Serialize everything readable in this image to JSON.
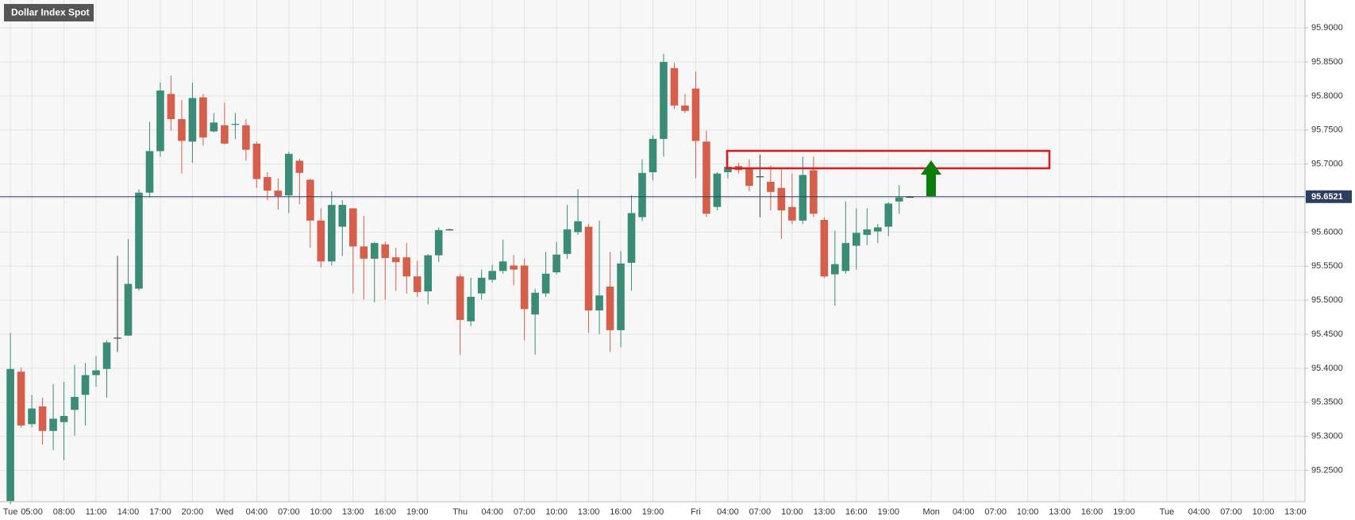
{
  "chart_data": {
    "type": "candlestick",
    "title": "Dollar Index Spot",
    "categories": [
      "Tue",
      null,
      "05:00",
      null,
      null,
      "08:00",
      null,
      null,
      "11:00",
      null,
      null,
      "14:00",
      null,
      null,
      "17:00",
      null,
      null,
      "20:00",
      null,
      null,
      "Wed",
      null,
      null,
      "04:00",
      null,
      null,
      "07:00",
      null,
      null,
      "10:00",
      null,
      null,
      "13:00",
      null,
      null,
      "16:00",
      null,
      null,
      "19:00",
      null,
      null,
      null,
      "Thu",
      null,
      null,
      "04:00",
      null,
      null,
      "07:00",
      null,
      null,
      "10:00",
      null,
      null,
      "13:00",
      null,
      null,
      "16:00",
      null,
      null,
      "19:00",
      null,
      null,
      null,
      "Fri",
      null,
      null,
      "04:00",
      null,
      null,
      "07:00",
      null,
      null,
      "10:00",
      null,
      null,
      "13:00",
      null,
      null,
      "16:00",
      null,
      null,
      "19:00",
      null,
      null,
      null,
      "Mon",
      null,
      null,
      "04:00",
      null,
      null,
      "07:00",
      null,
      null,
      "10:00",
      null,
      null,
      "13:00",
      null,
      null,
      "16:00",
      null,
      null,
      "19:00",
      null,
      null,
      null,
      "Tue",
      null,
      null,
      "04:00",
      null,
      null,
      "07:00",
      null,
      null,
      "10:00",
      null,
      null,
      "13:00"
    ],
    "open": [
      95.205,
      95.395,
      95.318,
      95.344,
      95.308,
      95.321,
      95.339,
      95.361,
      95.39,
      95.399,
      95.445,
      95.448,
      95.517,
      95.658,
      95.719,
      95.803,
      95.766,
      95.733,
      95.798,
      95.748,
      95.757,
      95.758,
      95.757,
      95.73,
      95.681,
      95.661,
      95.654,
      95.705,
      95.677,
      95.617,
      95.557,
      95.608,
      95.635,
      95.579,
      95.561,
      95.582,
      95.563,
      95.563,
      95.535,
      95.513,
      95.566,
      95.604,
      95.535,
      95.469,
      95.51,
      95.53,
      95.543,
      95.551,
      95.551,
      95.479,
      95.51,
      95.541,
      95.568,
      95.6,
      95.608,
      95.485,
      95.52,
      95.456,
      95.555,
      95.622,
      95.688,
      95.737,
      95.841,
      95.786,
      95.811,
      95.733,
      95.637,
      95.688,
      95.697,
      95.695,
      95.682,
      95.674,
      95.665,
      95.637,
      95.617,
      95.691,
      95.618,
      95.538,
      95.543,
      95.58,
      95.596,
      95.601,
      95.608,
      95.645,
      95.652,
      null,
      null,
      null,
      null,
      null,
      null,
      null,
      null,
      null,
      null,
      null,
      null,
      null,
      null,
      null,
      null,
      null,
      null,
      null,
      null,
      null,
      null,
      null,
      null,
      null,
      null,
      null,
      null,
      null,
      null,
      null,
      null,
      null,
      null,
      null,
      null
    ],
    "high": [
      95.452,
      95.401,
      95.361,
      95.357,
      95.377,
      95.38,
      95.405,
      95.408,
      95.418,
      95.441,
      95.565,
      95.59,
      95.663,
      95.762,
      95.82,
      95.83,
      95.794,
      95.82,
      95.803,
      95.775,
      95.79,
      95.775,
      95.766,
      95.733,
      95.688,
      95.679,
      95.718,
      95.708,
      95.679,
      95.635,
      95.66,
      95.647,
      95.635,
      95.624,
      95.586,
      95.586,
      95.577,
      95.584,
      95.558,
      95.568,
      95.607,
      95.605,
      95.539,
      95.533,
      95.545,
      95.552,
      95.589,
      95.566,
      95.561,
      95.517,
      95.571,
      95.586,
      95.64,
      95.663,
      95.612,
      95.617,
      95.571,
      95.572,
      95.654,
      95.707,
      95.742,
      95.862,
      95.849,
      95.803,
      95.836,
      95.749,
      95.688,
      95.714,
      95.702,
      95.707,
      95.714,
      95.698,
      95.692,
      95.686,
      95.711,
      95.711,
      95.622,
      95.602,
      95.645,
      95.635,
      95.635,
      95.612,
      95.644,
      95.669,
      95.653,
      null,
      null,
      null,
      null,
      null,
      null,
      null,
      null,
      null,
      null,
      null,
      null,
      null,
      null,
      null,
      null,
      null,
      null,
      null,
      null,
      null,
      null,
      null,
      null,
      null,
      null,
      null,
      null,
      null,
      null,
      null,
      null,
      null,
      null,
      null,
      null
    ],
    "low": [
      95.2,
      95.313,
      95.313,
      95.288,
      95.28,
      95.265,
      95.301,
      95.316,
      95.373,
      95.357,
      95.424,
      95.448,
      95.514,
      95.651,
      95.711,
      95.749,
      95.686,
      95.702,
      95.727,
      95.747,
      95.729,
      95.737,
      95.705,
      95.665,
      95.647,
      95.633,
      95.628,
      95.641,
      95.577,
      95.548,
      95.551,
      95.565,
      95.51,
      95.501,
      95.497,
      95.501,
      95.514,
      95.51,
      95.505,
      95.494,
      95.556,
      95.603,
      95.42,
      95.462,
      95.501,
      95.526,
      95.539,
      95.522,
      95.441,
      95.42,
      95.505,
      95.538,
      95.561,
      95.596,
      95.452,
      95.45,
      95.424,
      95.431,
      95.514,
      95.616,
      95.676,
      95.711,
      95.781,
      95.775,
      95.679,
      95.622,
      95.632,
      95.679,
      95.686,
      95.66,
      95.622,
      95.632,
      95.59,
      95.612,
      95.612,
      95.622,
      95.533,
      95.492,
      95.539,
      95.545,
      95.581,
      95.584,
      95.594,
      95.627,
      95.651,
      null,
      null,
      null,
      null,
      null,
      null,
      null,
      null,
      null,
      null,
      null,
      null,
      null,
      null,
      null,
      null,
      null,
      null,
      null,
      null,
      null,
      null,
      null,
      null,
      null,
      null,
      null,
      null,
      null,
      null,
      null,
      null,
      null,
      null,
      null,
      null
    ],
    "close": [
      95.399,
      95.316,
      95.341,
      95.308,
      95.326,
      95.33,
      95.358,
      95.39,
      95.397,
      95.438,
      95.445,
      95.524,
      95.658,
      95.719,
      95.808,
      95.766,
      95.734,
      95.797,
      95.739,
      95.761,
      95.73,
      95.759,
      95.721,
      95.678,
      95.661,
      95.653,
      95.715,
      95.687,
      95.617,
      95.557,
      95.64,
      95.64,
      95.579,
      95.561,
      95.584,
      95.562,
      95.556,
      95.535,
      95.512,
      95.566,
      95.603,
      95.604,
      95.471,
      95.505,
      95.533,
      95.543,
      95.557,
      95.545,
      95.487,
      95.511,
      95.539,
      95.567,
      95.604,
      95.616,
      95.485,
      95.507,
      95.456,
      95.554,
      95.628,
      95.687,
      95.737,
      95.85,
      95.786,
      95.778,
      95.734,
      95.627,
      95.686,
      95.696,
      95.691,
      95.668,
      95.682,
      95.659,
      95.632,
      95.617,
      95.684,
      95.627,
      95.535,
      95.553,
      95.584,
      95.599,
      95.604,
      95.607,
      95.642,
      95.651,
      95.652,
      null,
      null,
      null,
      null,
      null,
      null,
      null,
      null,
      null,
      null,
      null,
      null,
      null,
      null,
      null,
      null,
      null,
      null,
      null,
      null,
      null,
      null,
      null,
      null,
      null,
      null,
      null,
      null,
      null,
      null,
      null,
      null,
      null,
      null,
      null,
      null
    ],
    "up_color": "#3a8c76",
    "down_color": "#d65f4c",
    "neutral_color": "#444444",
    "last_value": 95.6521,
    "ylim": [
      95.204,
      95.941
    ],
    "yticks": [
      {
        "value": 95.25,
        "label": "95.2500"
      },
      {
        "value": 95.3,
        "label": "95.3000"
      },
      {
        "value": 95.35,
        "label": "95.3500"
      },
      {
        "value": 95.4,
        "label": "95.4000"
      },
      {
        "value": 95.45,
        "label": "95.4500"
      },
      {
        "value": 95.5,
        "label": "95.5000"
      },
      {
        "value": 95.55,
        "label": "95.5500"
      },
      {
        "value": 95.6,
        "label": "95.6000"
      },
      {
        "value": 95.65,
        "label": "95.6500"
      },
      {
        "value": 95.7,
        "label": "95.7000"
      },
      {
        "value": 95.75,
        "label": "95.7500"
      },
      {
        "value": 95.8,
        "label": "95.8000"
      },
      {
        "value": 95.85,
        "label": "95.8500"
      },
      {
        "value": 95.9,
        "label": "95.9000"
      }
    ],
    "grid": true
  }
}
